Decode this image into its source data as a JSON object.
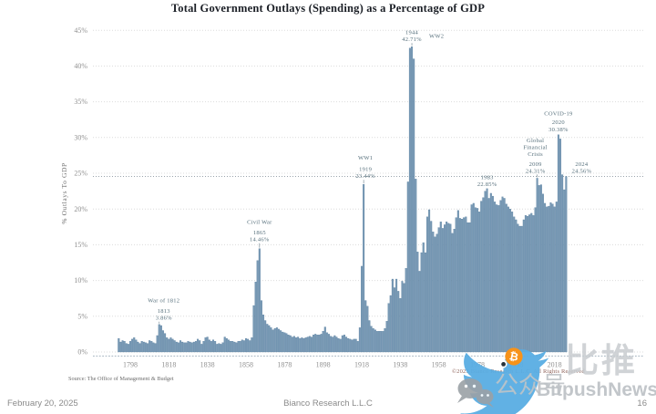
{
  "title": "Total Government Outlays (Spending) as a Percentage of GDP",
  "chart_data": {
    "type": "bar",
    "title": "Total Government Outlays (Spending) as a Percentage of GDP",
    "xlabel": "",
    "ylabel": "% Outlays To GDP",
    "ylim": [
      0,
      45
    ],
    "grid": true,
    "y_ticks": [
      "0%",
      "5%",
      "10%",
      "15%",
      "20%",
      "25%",
      "30%",
      "35%",
      "40%",
      "45%"
    ],
    "x_ticks": [
      1798,
      1818,
      1838,
      1858,
      1878,
      1898,
      1918,
      1938,
      1958,
      1978,
      1998,
      2018
    ],
    "start_year": 1792,
    "end_year": 2024,
    "bar_color": "#7899b5",
    "bar_stroke": "#527a9b",
    "reference_line": {
      "value": 24.56,
      "style": "dotted",
      "color": "#9aa4ab"
    },
    "values": [
      1.9,
      1.4,
      1.6,
      1.5,
      1.2,
      1.1,
      1.5,
      1.8,
      2.0,
      1.7,
      1.4,
      1.2,
      1.5,
      1.4,
      1.3,
      1.2,
      1.6,
      1.5,
      1.3,
      1.2,
      2.3,
      3.86,
      3.7,
      3.0,
      2.6,
      2.0,
      1.8,
      2.0,
      1.8,
      1.6,
      1.4,
      1.3,
      1.6,
      1.4,
      1.3,
      1.3,
      1.5,
      1.4,
      1.3,
      1.4,
      1.5,
      1.8,
      1.6,
      1.1,
      1.5,
      2.0,
      2.1,
      1.7,
      1.5,
      1.7,
      1.5,
      1.1,
      1.2,
      1.1,
      1.3,
      2.1,
      1.9,
      1.7,
      1.5,
      1.5,
      1.4,
      1.3,
      1.5,
      1.5,
      1.7,
      1.6,
      1.9,
      1.8,
      1.6,
      2.0,
      6.5,
      9.8,
      12.8,
      14.46,
      7.2,
      5.2,
      4.4,
      3.9,
      3.7,
      3.4,
      3.1,
      3.3,
      3.4,
      3.2,
      3.0,
      2.8,
      2.7,
      2.6,
      2.4,
      2.3,
      2.1,
      2.2,
      2.0,
      2.1,
      1.9,
      2.0,
      1.9,
      2.0,
      2.1,
      2.2,
      2.1,
      2.4,
      2.5,
      2.4,
      2.4,
      2.5,
      2.9,
      3.5,
      2.7,
      2.5,
      2.2,
      2.1,
      2.3,
      2.1,
      1.9,
      1.8,
      2.3,
      2.4,
      2.1,
      1.9,
      1.8,
      1.7,
      1.8,
      1.8,
      1.5,
      3.4,
      12.0,
      23.44,
      7.2,
      6.4,
      4.4,
      3.6,
      3.3,
      3.1,
      2.9,
      2.9,
      2.9,
      2.9,
      3.3,
      4.3,
      6.8,
      7.9,
      10.2,
      9.0,
      10.2,
      8.5,
      7.5,
      9.9,
      9.6,
      11.7,
      23.8,
      42.5,
      42.71,
      41.0,
      24.2,
      14.0,
      11.3,
      13.9,
      15.3,
      13.9,
      18.9,
      19.9,
      18.3,
      16.8,
      16.1,
      16.5,
      17.4,
      18.2,
      17.3,
      17.8,
      18.2,
      18.0,
      17.9,
      16.6,
      17.2,
      18.8,
      19.8,
      18.7,
      18.6,
      18.8,
      18.9,
      18.1,
      18.1,
      20.6,
      20.8,
      20.2,
      20.1,
      19.6,
      21.1,
      21.6,
      22.5,
      22.85,
      21.5,
      22.2,
      21.8,
      21.0,
      20.6,
      20.5,
      21.2,
      21.7,
      21.5,
      20.7,
      20.3,
      20.0,
      19.6,
      18.9,
      18.5,
      17.9,
      17.6,
      17.6,
      18.5,
      19.1,
      19.0,
      19.2,
      19.4,
      19.1,
      20.2,
      24.31,
      23.3,
      23.4,
      22.1,
      20.8,
      20.3,
      20.4,
      20.9,
      20.7,
      20.3,
      21.0,
      30.38,
      29.8,
      24.8,
      22.7,
      24.56
    ],
    "annotations": [
      {
        "name": "war-of-1812",
        "title_lines": [
          "War of 1812"
        ],
        "year": "1813",
        "value_label": "3.86%",
        "x_year": 1813,
        "y_value": 3.86,
        "gap": 5,
        "dx": 5,
        "title_gap": 4
      },
      {
        "name": "civil-war",
        "title_lines": [
          "Civil War"
        ],
        "year": "1865",
        "value_label": "14.46%",
        "x_year": 1865,
        "y_value": 14.46,
        "gap": 8,
        "dx": 0,
        "title_gap": 4
      },
      {
        "name": "ww1",
        "title_lines": [
          "WW1"
        ],
        "year": "1919",
        "value_label": "23.44%",
        "x_year": 1919,
        "y_value": 23.44,
        "gap": 7,
        "dx": 2,
        "title_gap": 5
      },
      {
        "name": "ww2",
        "title_lines": [],
        "year": "1944",
        "value_label": "42.71%",
        "x_year": 1944,
        "y_value": 42.71,
        "gap": 6,
        "dx": 0,
        "side_label": "WW2",
        "side_dx": 19
      },
      {
        "name": "peak-1983",
        "title_lines": [],
        "year": "1983",
        "value_label": "22.85%",
        "x_year": 1983,
        "y_value": 22.85,
        "gap": 3,
        "dx": 0
      },
      {
        "name": "global-financial-crisis",
        "title_lines": [
          "Global",
          "Financial",
          "Crisis"
        ],
        "year": "2009",
        "value_label": "24.31%",
        "x_year": 2009,
        "y_value": 24.31,
        "gap": 6,
        "dx": -2,
        "title_gap": 3
      },
      {
        "name": "covid-19",
        "title_lines": [
          "COVID-19"
        ],
        "year": "2020",
        "value_label": "30.38%",
        "x_year": 2020,
        "y_value": 30.38,
        "gap": 4,
        "dx": 0,
        "title_gap": 2
      },
      {
        "name": "year-2024",
        "title_lines": [],
        "year": "2024",
        "value_label": "24.56%",
        "x_year": 2024,
        "y_value": 24.56,
        "gap": 4,
        "dx": 17
      }
    ],
    "source": "Source: The Office of Management & Budget",
    "legend_position": "none"
  },
  "footer": {
    "date": "February 20, 2025",
    "center": "Bianco Research L.L.C",
    "page": "16"
  },
  "copyright": "©2025 Bianco Research L.L.C.  All Rights Reserved",
  "watermark": {
    "cn_large": "比推",
    "cn_small": "公众号",
    "en": "BitpushNews",
    "bitcoin_glyph": "₿",
    "twitter_color": "#58ade3",
    "bitcoin_color": "#f7931a",
    "gray": "#9ba1a6"
  }
}
